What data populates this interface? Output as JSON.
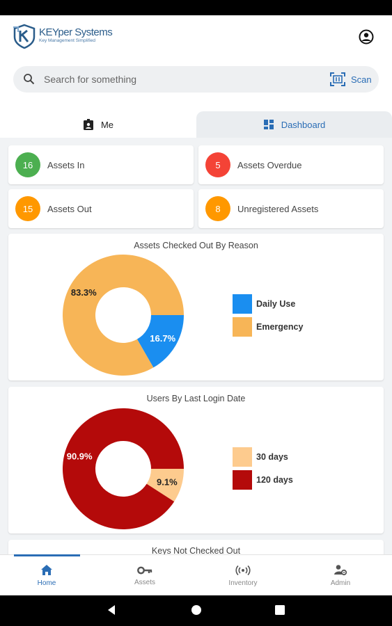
{
  "app": {
    "logo_title": "KEYper Systems",
    "logo_subtitle": "Key Management Simplified"
  },
  "search": {
    "placeholder": "Search for something",
    "scan_label": "Scan"
  },
  "tabs": [
    {
      "label": "Me",
      "icon": "badge-icon",
      "active": false
    },
    {
      "label": "Dashboard",
      "icon": "dashboard-icon",
      "active": true
    }
  ],
  "stats": [
    {
      "count": "16",
      "label": "Assets In",
      "color": "#4caf50"
    },
    {
      "count": "5",
      "label": "Assets Overdue",
      "color": "#f44336"
    },
    {
      "count": "15",
      "label": "Assets Out",
      "color": "#ff9800"
    },
    {
      "count": "8",
      "label": "Unregistered Assets",
      "color": "#ff9800"
    }
  ],
  "chart_data": [
    {
      "type": "pie",
      "title": "Assets Checked Out By Reason",
      "categories": [
        "Daily Use",
        "Emergency"
      ],
      "values": [
        16.7,
        83.3
      ],
      "value_labels": [
        "16.7%",
        "83.3%"
      ],
      "colors": [
        "#1a8ef0",
        "#f7b557"
      ],
      "donut": true,
      "legend_position": "right"
    },
    {
      "type": "pie",
      "title": "Users By Last Login Date",
      "categories": [
        "30 days",
        "120 days"
      ],
      "values": [
        9.1,
        90.9
      ],
      "value_labels": [
        "9.1%",
        "90.9%"
      ],
      "colors": [
        "#fdcb8e",
        "#b40a0a"
      ],
      "donut": true,
      "legend_position": "right"
    },
    {
      "type": "pie",
      "title": "Keys Not Checked Out"
    }
  ],
  "bottom_nav": [
    {
      "label": "Home",
      "icon": "home-icon",
      "active": true
    },
    {
      "label": "Assets",
      "icon": "key-icon",
      "active": false
    },
    {
      "label": "Inventory",
      "icon": "broadcast-icon",
      "active": false
    },
    {
      "label": "Admin",
      "icon": "admin-gear-icon",
      "active": false
    }
  ]
}
